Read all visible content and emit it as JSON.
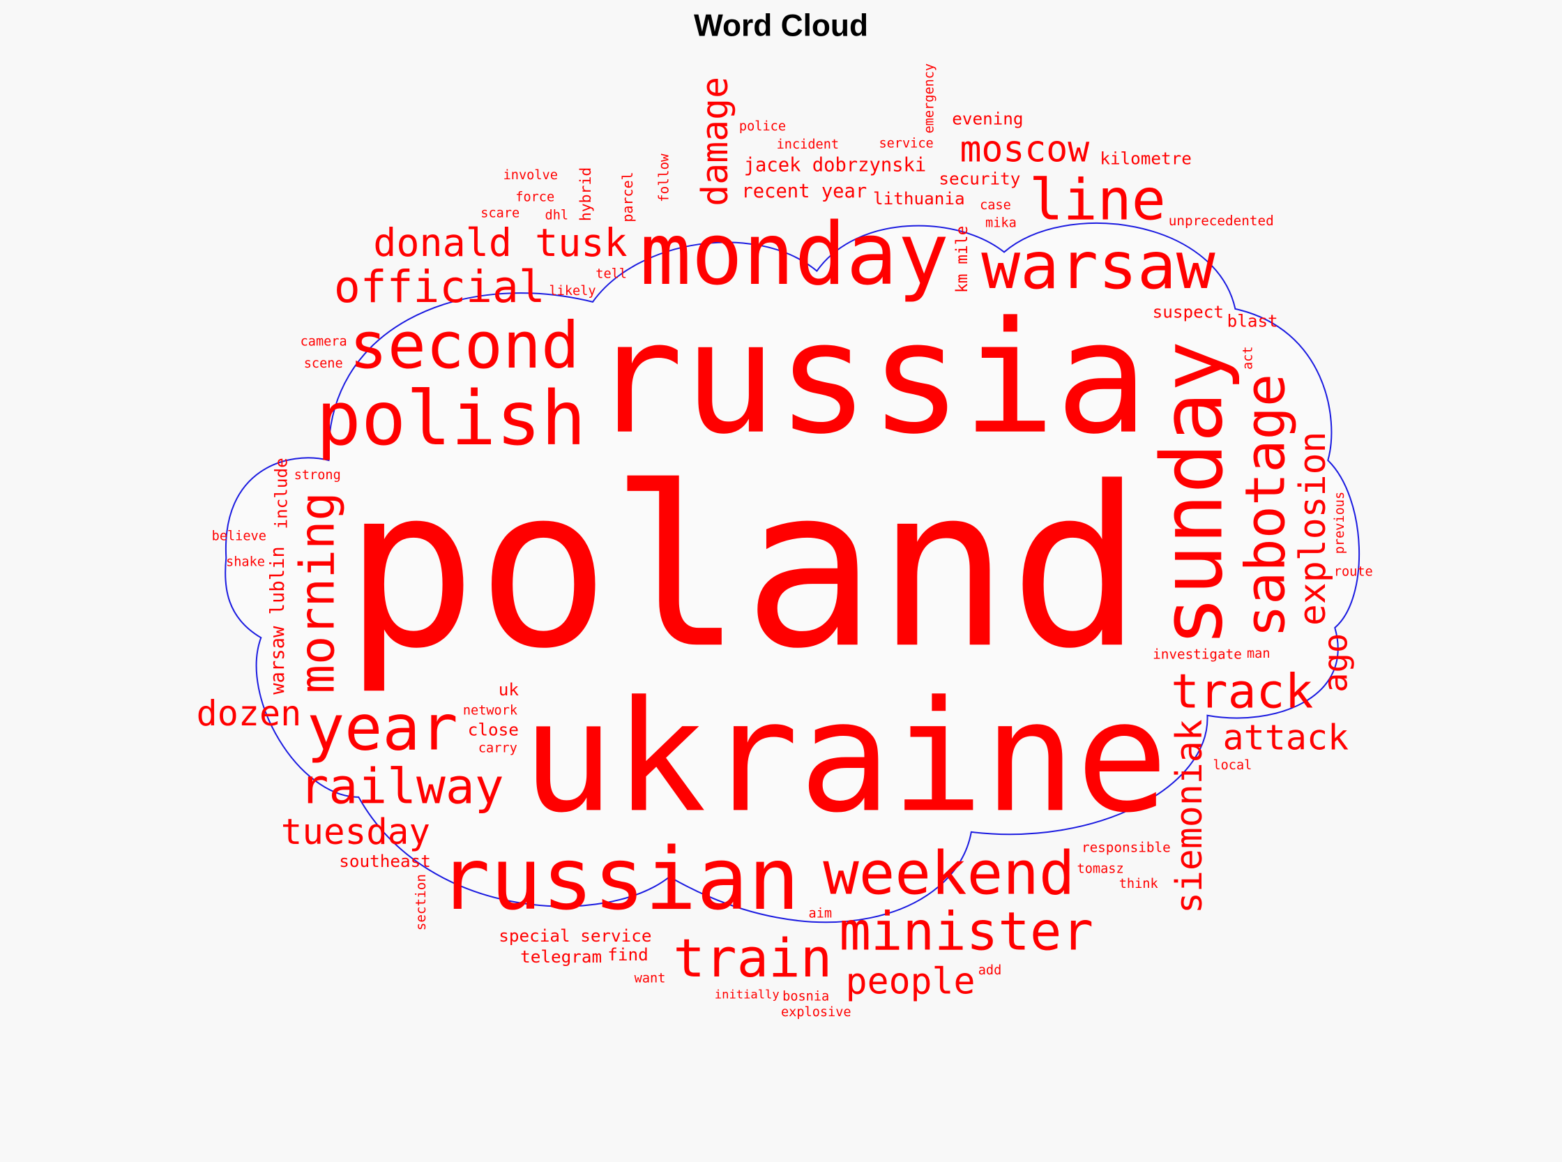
{
  "chart_data": {
    "type": "wordcloud",
    "title": "Word Cloud",
    "colors": {
      "words": "#ff0000",
      "outline": "#0000dd",
      "background": "#f8f8f8",
      "mask_fill": "#fafafa"
    },
    "shape": "cloud",
    "words": [
      "poland",
      "russia",
      "ukraine",
      "monday",
      "russian",
      "polish",
      "second",
      "line",
      "warsaw",
      "official",
      "donald tusk",
      "railway",
      "weekend",
      "year",
      "dozen",
      "tuesday",
      "minister",
      "people",
      "train",
      "track",
      "attack",
      "moscow",
      "special service",
      "southeast",
      "telegram",
      "find",
      "recent year",
      "lithuania",
      "security",
      "kilometre",
      "suspect",
      "evening",
      "unprecedented",
      "blast",
      "jacek dobrzynski",
      "likely",
      "scene",
      "camera",
      "tell",
      "dhl",
      "mika",
      "case",
      "force",
      "involve",
      "service",
      "incident",
      "police",
      "scare",
      "strong",
      "believe",
      "carry",
      "shake",
      "network",
      "uk",
      "close",
      "man",
      "route",
      "tomasz",
      "investigate",
      "local",
      "responsible",
      "think",
      "want",
      "bosnia",
      "initially",
      "aim",
      "add",
      "explosive",
      "sunday",
      "sabotage",
      "explosion",
      "ago",
      "act",
      "previous",
      "morning",
      "damage",
      "siemoniak",
      "warsaw lublin",
      "include",
      "hybrid",
      "section",
      "parcel",
      "follow",
      "emergency",
      "km mile"
    ]
  }
}
